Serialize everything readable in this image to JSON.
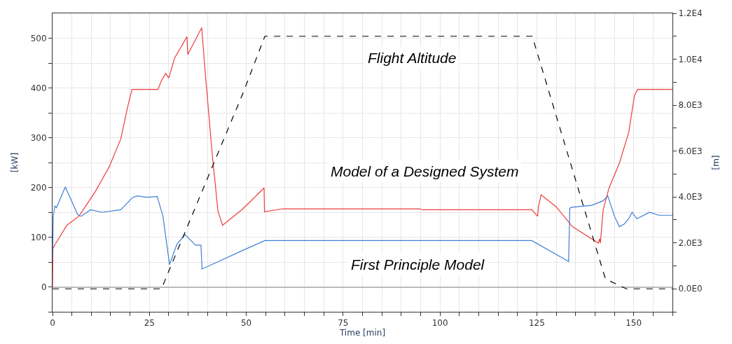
{
  "chart_data": {
    "type": "line",
    "xlabel": "Time [min]",
    "ylabel": "[kW]",
    "y2label": "[m]",
    "xlim": [
      0,
      160
    ],
    "xticks": [
      0,
      {
        "value": 5,
        "label": null
      },
      {
        "value": 10,
        "label": null
      },
      {
        "value": 15,
        "label": null
      },
      {
        "value": 20,
        "label": null
      },
      25,
      {
        "value": 30,
        "label": null
      },
      {
        "value": 35,
        "label": null
      },
      {
        "value": 40,
        "label": null
      },
      {
        "value": 45,
        "label": null
      },
      50,
      {
        "value": 55,
        "label": null
      },
      {
        "value": 60,
        "label": null
      },
      {
        "value": 65,
        "label": null
      },
      {
        "value": 70,
        "label": null
      },
      75,
      {
        "value": 80,
        "label": null
      },
      {
        "value": 85,
        "label": null
      },
      {
        "value": 90,
        "label": null
      },
      {
        "value": 95,
        "label": null
      },
      100,
      {
        "value": 105,
        "label": null
      },
      {
        "value": 110,
        "label": null
      },
      {
        "value": 115,
        "label": null
      },
      {
        "value": 120,
        "label": null
      },
      125,
      {
        "value": 130,
        "label": null
      },
      {
        "value": 135,
        "label": null
      },
      {
        "value": 140,
        "label": null
      },
      {
        "value": 145,
        "label": null
      },
      150,
      {
        "value": 155,
        "label": null
      },
      {
        "value": 160,
        "label": null
      }
    ],
    "ylim": [
      -50,
      550
    ],
    "yticks": [
      {
        "value": -50,
        "label": null
      },
      0,
      {
        "value": 50,
        "label": null
      },
      100,
      {
        "value": 150,
        "label": null
      },
      200,
      {
        "value": 250,
        "label": null
      },
      300,
      {
        "value": 350,
        "label": null
      },
      400,
      {
        "value": 450,
        "label": null
      },
      500
    ],
    "y2lim": [
      -1000,
      12000
    ],
    "y2ticks": [
      {
        "value": -1000,
        "label": null
      },
      {
        "value": 0,
        "label": "0.0E0"
      },
      {
        "value": 1000,
        "label": null
      },
      {
        "value": 2000,
        "label": "2.0E3"
      },
      {
        "value": 3000,
        "label": null
      },
      {
        "value": 4000,
        "label": "4.0E3"
      },
      {
        "value": 5000,
        "label": null
      },
      {
        "value": 6000,
        "label": "6.0E3"
      },
      {
        "value": 7000,
        "label": null
      },
      {
        "value": 8000,
        "label": "8.0E3"
      },
      {
        "value": 9000,
        "label": null
      },
      {
        "value": 10000,
        "label": "1.0E4"
      },
      {
        "value": 11000,
        "label": null
      },
      {
        "value": 12000,
        "label": "1.2E4"
      }
    ],
    "grid": true,
    "legend": false,
    "series": [
      {
        "name": "Model of a Designed System",
        "color": "#f03c3c",
        "x": [
          0,
          0.1,
          0.7,
          3.7,
          6.8,
          11,
          14.6,
          17.6,
          19.4,
          20.5,
          27.2,
          28.2,
          29.2,
          30,
          31.5,
          34.7,
          34.9,
          38.5,
          39.4,
          41.2,
          42.7,
          43.9,
          49,
          54.6,
          54.7,
          59.4,
          94.7,
          95.5,
          123.7,
          125.2,
          125.4,
          126.1,
          130,
          134.2,
          140.9,
          141.2,
          141.4,
          142.1,
          143.6,
          146.3,
          148.7,
          150.2,
          151,
          160
        ],
        "values": [
          0,
          77,
          86,
          124,
          142,
          191,
          241,
          297,
          362,
          397,
          397,
          416,
          429,
          420,
          460,
          503,
          467,
          521,
          432,
          268,
          152,
          124,
          156,
          199,
          151,
          157,
          157,
          155,
          155,
          142,
          161,
          185,
          161,
          121,
          88,
          97,
          88,
          154,
          198,
          249,
          310,
          385,
          397,
          397
        ]
      },
      {
        "name": "First Principle Model",
        "color": "#3c7fd6",
        "x": [
          0,
          0.2,
          0.6,
          1,
          3.3,
          6.5,
          7.4,
          9.8,
          12.8,
          17.6,
          20.7,
          21.9,
          24.3,
          27,
          28.5,
          30.2,
          32.1,
          34.2,
          36.9,
          38.3,
          38.6,
          49,
          54.8,
          123.7,
          133.2,
          133.5,
          133.9,
          139.1,
          142.1,
          143.3,
          145.1,
          146.3,
          147.5,
          148.7,
          149.6,
          150.8,
          154.1,
          156.5,
          160
        ],
        "values": [
          58,
          142,
          163,
          159,
          201,
          145,
          142,
          155,
          150,
          155,
          180,
          183,
          180,
          182,
          142,
          45,
          86,
          105,
          84,
          84,
          36,
          73,
          93,
          93,
          51,
          158,
          160,
          164,
          173,
          183,
          141,
          121,
          126,
          137,
          150,
          137,
          150,
          144,
          144
        ]
      },
      {
        "name": "Flight Altitude",
        "color": "#000000",
        "axis": "y2",
        "line_style": "dashed",
        "x": [
          0,
          28.1,
          49.1,
          54.8,
          123.8,
          142.7,
          148.1,
          160
        ],
        "values": [
          0,
          0,
          8500,
          11000,
          11000,
          430,
          0,
          0
        ]
      }
    ]
  }
}
